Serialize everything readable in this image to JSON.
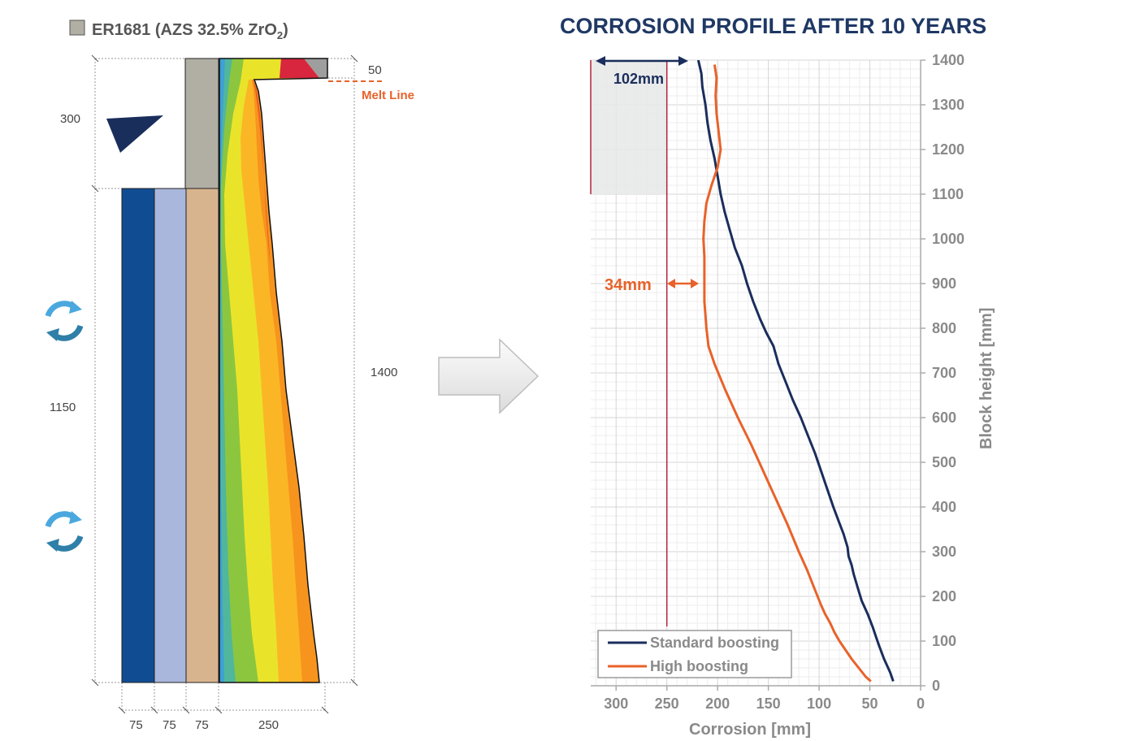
{
  "left_figure": {
    "legend_label_main": "ER1681 (AZS 32.5% ZrO",
    "legend_label_sub": "2",
    "legend_label_end": ")",
    "legend_color": "#b1aea3",
    "dim_300": "300",
    "dim_1150": "1150",
    "dim_1400": "1400",
    "dim_50": "50",
    "melt_line": "Melt Line",
    "widths": [
      "75",
      "75",
      "75",
      "250"
    ],
    "layer_colors": [
      "#0f4c92",
      "#aab7dc",
      "#d8b48e",
      "#b1aea3"
    ],
    "contour_colors": [
      "#3ea0d6",
      "#50b79c",
      "#8cc63f",
      "#e9e42a",
      "#fbb626",
      "#f7941d",
      "#ef5b24",
      "#d7263d"
    ]
  },
  "arrow_icon": "right-arrow-icon",
  "chart_data": {
    "type": "line",
    "title": "CORROSION PROFILE AFTER 10 YEARS",
    "xlabel": "Corrosion [mm]",
    "ylabel": "Block height [mm]",
    "xlim": [
      325,
      0
    ],
    "ylim": [
      0,
      1400
    ],
    "x_ticks": [
      300,
      250,
      200,
      150,
      100,
      50,
      0
    ],
    "y_ticks": [
      0,
      100,
      200,
      300,
      400,
      500,
      600,
      700,
      800,
      900,
      1000,
      1100,
      1200,
      1300,
      1400
    ],
    "grid": true,
    "legend_position": "bottom-left",
    "series": [
      {
        "name": "Standard boosting",
        "color": "#1a2e5c",
        "points": [
          [
            27,
            10
          ],
          [
            30,
            30
          ],
          [
            36,
            60
          ],
          [
            41,
            90
          ],
          [
            44,
            110
          ],
          [
            47,
            130
          ],
          [
            52,
            160
          ],
          [
            58,
            190
          ],
          [
            62,
            220
          ],
          [
            66,
            250
          ],
          [
            68,
            270
          ],
          [
            71,
            290
          ],
          [
            72,
            310
          ],
          [
            76,
            340
          ],
          [
            81,
            370
          ],
          [
            86,
            400
          ],
          [
            92,
            440
          ],
          [
            98,
            480
          ],
          [
            104,
            520
          ],
          [
            111,
            560
          ],
          [
            118,
            600
          ],
          [
            126,
            640
          ],
          [
            133,
            680
          ],
          [
            140,
            720
          ],
          [
            145,
            760
          ],
          [
            152,
            790
          ],
          [
            158,
            820
          ],
          [
            165,
            860
          ],
          [
            171,
            900
          ],
          [
            176,
            940
          ],
          [
            183,
            980
          ],
          [
            188,
            1020
          ],
          [
            193,
            1060
          ],
          [
            197,
            1100
          ],
          [
            200,
            1140
          ],
          [
            203,
            1180
          ],
          [
            207,
            1220
          ],
          [
            210,
            1260
          ],
          [
            212,
            1300
          ],
          [
            215,
            1340
          ],
          [
            216,
            1370
          ],
          [
            219,
            1400
          ]
        ]
      },
      {
        "name": "High boosting",
        "color": "#e8622a",
        "points": [
          [
            49,
            10
          ],
          [
            54,
            20
          ],
          [
            61,
            40
          ],
          [
            68,
            60
          ],
          [
            74,
            80
          ],
          [
            80,
            100
          ],
          [
            85,
            120
          ],
          [
            89,
            140
          ],
          [
            94,
            160
          ],
          [
            98,
            180
          ],
          [
            105,
            220
          ],
          [
            112,
            260
          ],
          [
            120,
            300
          ],
          [
            131,
            360
          ],
          [
            143,
            420
          ],
          [
            155,
            480
          ],
          [
            167,
            540
          ],
          [
            180,
            600
          ],
          [
            192,
            660
          ],
          [
            203,
            720
          ],
          [
            209,
            760
          ],
          [
            211,
            800
          ],
          [
            213,
            860
          ],
          [
            213,
            900
          ],
          [
            213,
            960
          ],
          [
            214,
            1000
          ],
          [
            213,
            1040
          ],
          [
            211,
            1080
          ],
          [
            206,
            1120
          ],
          [
            200,
            1160
          ],
          [
            197,
            1200
          ],
          [
            199,
            1240
          ],
          [
            201,
            1280
          ],
          [
            202,
            1320
          ],
          [
            201,
            1360
          ],
          [
            203,
            1390
          ]
        ]
      }
    ],
    "annotations": {
      "gap_top": "102mm",
      "gap_bottom": "34mm",
      "reference_x": 250,
      "shaded_x_range": [
        325,
        250
      ],
      "shaded_y_range": [
        1100,
        1400
      ]
    }
  }
}
